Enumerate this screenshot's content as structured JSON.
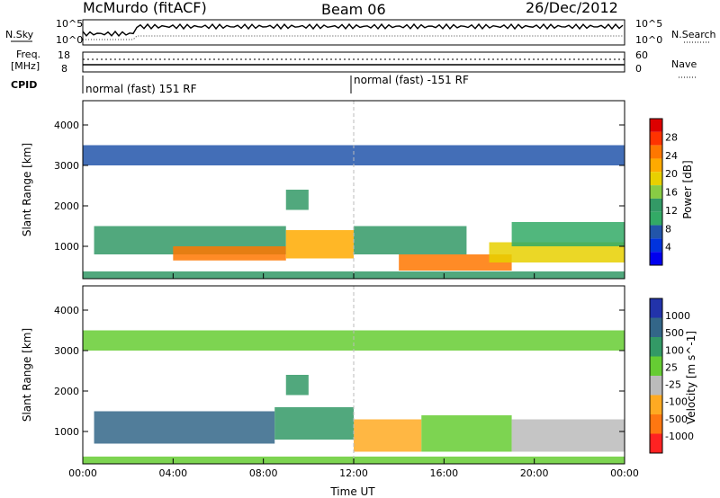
{
  "header": {
    "station": "McMurdo (fitACF)",
    "beam": "Beam 06",
    "date": "26/Dec/2012"
  },
  "status_panel": {
    "n_sky_label": "N.Sky",
    "n_search_label": "N.Search",
    "freq_label_line1": "Freq.",
    "freq_label_line2": "[MHz]",
    "nave_label": "Nave",
    "cpid_label": "CPID",
    "noise_ticks_left": [
      "10^5",
      "10^0"
    ],
    "noise_ticks_right": [
      "10^5",
      "10^0"
    ],
    "freq_ticks": [
      "18",
      "8"
    ],
    "nave_ticks": [
      "60",
      "0"
    ],
    "cpid_segments": [
      "normal (fast) 151 RF",
      "normal (fast) -151 RF"
    ]
  },
  "chart_data": [
    {
      "type": "heatmap",
      "name": "power",
      "xlabel": "",
      "ylabel": "Slant Range [km]",
      "x_ticks": [
        "00:00",
        "04:00",
        "08:00",
        "12:00",
        "16:00",
        "20:00",
        "00:00"
      ],
      "x_hours": [
        0,
        4,
        8,
        12,
        16,
        20,
        24
      ],
      "y_ticks": [
        1000,
        2000,
        3000,
        4000
      ],
      "ylim": [
        200,
        4600
      ],
      "colorbar_label": "Power [dB]",
      "colorbar_ticks": [
        "28",
        "24",
        "20",
        "16",
        "12",
        "8",
        "4"
      ],
      "colorbar_colors": [
        "#dd0000",
        "#ff3300",
        "#ff7700",
        "#ffaa00",
        "#e8d000",
        "#88cc44",
        "#339966",
        "#33aa66",
        "#2255aa",
        "#0033dd",
        "#0000ee"
      ],
      "bands": [
        {
          "t0": 0,
          "t1": 24,
          "r0": 200,
          "r1": 380,
          "value": 12
        },
        {
          "t0": 0.5,
          "t1": 9,
          "r0": 800,
          "r1": 1500,
          "value": 12
        },
        {
          "t0": 4,
          "t1": 9,
          "r0": 650,
          "r1": 1000,
          "value": 26
        },
        {
          "t0": 9,
          "t1": 12,
          "r0": 700,
          "r1": 1400,
          "value": 22
        },
        {
          "t0": 12,
          "t1": 17,
          "r0": 800,
          "r1": 1500,
          "value": 14
        },
        {
          "t0": 14,
          "t1": 19,
          "r0": 400,
          "r1": 800,
          "value": 25
        },
        {
          "t0": 18,
          "t1": 24,
          "r0": 600,
          "r1": 1100,
          "value": 18
        },
        {
          "t0": 19,
          "t1": 24,
          "r0": 1000,
          "r1": 1600,
          "value": 10
        },
        {
          "t0": 0,
          "t1": 24,
          "r0": 3000,
          "r1": 3500,
          "value": 6
        },
        {
          "t0": 9,
          "t1": 10,
          "r0": 1900,
          "r1": 2400,
          "value": 14
        }
      ]
    },
    {
      "type": "heatmap",
      "name": "velocity",
      "xlabel": "Time UT",
      "ylabel": "Slant Range [km]",
      "x_ticks": [
        "00:00",
        "04:00",
        "08:00",
        "12:00",
        "16:00",
        "20:00",
        "00:00"
      ],
      "x_hours": [
        0,
        4,
        8,
        12,
        16,
        20,
        24
      ],
      "y_ticks": [
        1000,
        2000,
        3000,
        4000
      ],
      "ylim": [
        200,
        4600
      ],
      "colorbar_label": "Velocity [m s^-1]",
      "colorbar_ticks": [
        "1000",
        "500",
        "100",
        "25",
        "-25",
        "-100",
        "-500",
        "-1000"
      ],
      "colorbar_colors": [
        "#2233aa",
        "#336688",
        "#339966",
        "#66cc33",
        "#bbbbbb",
        "#ffaa22",
        "#ff7711",
        "#ff2222"
      ],
      "bands": [
        {
          "t0": 0,
          "t1": 24,
          "r0": 200,
          "r1": 380,
          "value": 50
        },
        {
          "t0": 0.5,
          "t1": 8.5,
          "r0": 700,
          "r1": 1500,
          "value": 300
        },
        {
          "t0": 8.5,
          "t1": 12,
          "r0": 800,
          "r1": 1600,
          "value": 80
        },
        {
          "t0": 12,
          "t1": 15,
          "r0": 500,
          "r1": 1300,
          "value": -150
        },
        {
          "t0": 15,
          "t1": 19,
          "r0": 500,
          "r1": 1400,
          "value": 60
        },
        {
          "t0": 19,
          "t1": 24,
          "r0": 500,
          "r1": 1300,
          "value": -60
        },
        {
          "t0": 0,
          "t1": 24,
          "r0": 3000,
          "r1": 3500,
          "value": 20
        },
        {
          "t0": 9,
          "t1": 10,
          "r0": 1900,
          "r1": 2400,
          "value": 120
        }
      ]
    }
  ]
}
